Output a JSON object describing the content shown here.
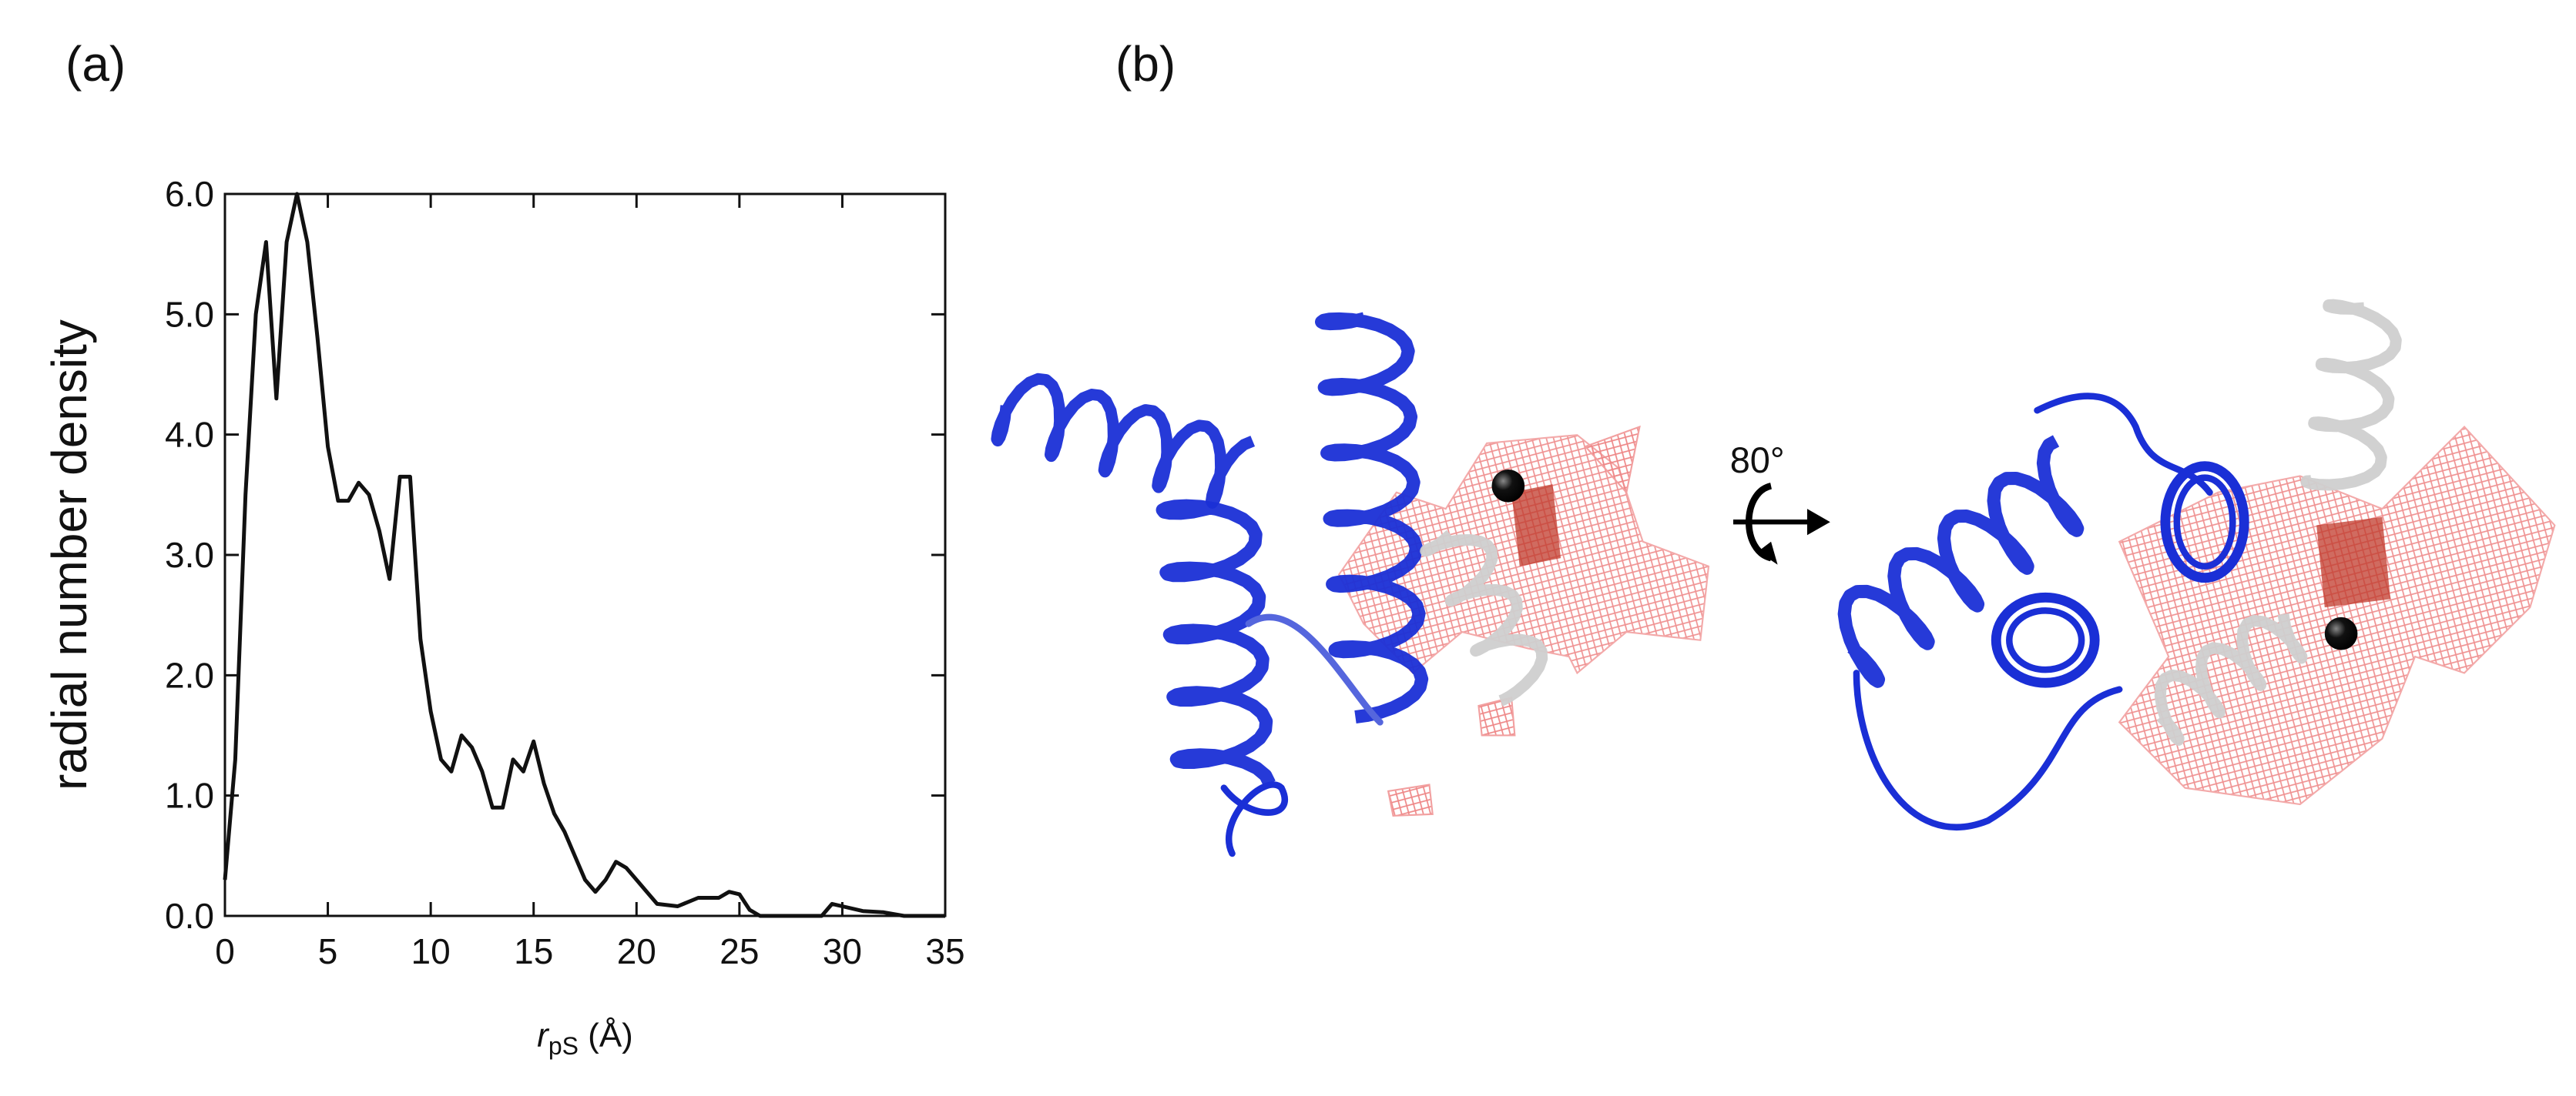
{
  "panel_labels": [
    "(a)",
    "(b)"
  ],
  "rotation_label": "80°",
  "chart_data": {
    "type": "line",
    "ylabel": "radial number density",
    "xlabel": {
      "symbol": "r",
      "subscript": "pS",
      "unit": "(Å)"
    },
    "x": [
      0,
      0.5,
      1,
      1.5,
      2,
      2.5,
      3,
      3.5,
      4,
      4.5,
      5,
      5.5,
      6,
      6.5,
      7,
      7.5,
      8,
      8.5,
      9,
      9.5,
      10,
      10.5,
      11,
      11.5,
      12,
      12.5,
      13,
      13.5,
      14,
      14.5,
      15,
      15.5,
      16,
      16.5,
      17,
      17.5,
      18,
      18.5,
      19,
      19.5,
      20,
      20.5,
      21,
      22,
      23,
      24,
      24.5,
      25,
      25.5,
      26,
      27,
      28,
      29,
      29.5,
      30,
      31,
      32,
      33,
      34,
      35
    ],
    "values": [
      0.3,
      1.3,
      3.5,
      5.0,
      5.6,
      4.3,
      5.6,
      6.0,
      5.6,
      4.8,
      3.9,
      3.45,
      3.45,
      3.6,
      3.5,
      3.2,
      2.8,
      3.65,
      3.65,
      2.3,
      1.7,
      1.3,
      1.2,
      1.5,
      1.4,
      1.2,
      0.9,
      0.9,
      1.3,
      1.2,
      1.45,
      1.1,
      0.85,
      0.7,
      0.5,
      0.3,
      0.2,
      0.3,
      0.45,
      0.4,
      0.3,
      0.2,
      0.1,
      0.08,
      0.15,
      0.15,
      0.2,
      0.18,
      0.05,
      0,
      0,
      0,
      0,
      0.1,
      0.08,
      0.04,
      0.03,
      0,
      0,
      0
    ],
    "color": "#111111",
    "xlim": [
      0,
      35
    ],
    "ylim": [
      0,
      6
    ],
    "xticks": [
      0,
      5,
      10,
      15,
      20,
      25,
      30,
      35
    ],
    "yticks": [
      {
        "value": 0,
        "label": "0.0"
      },
      {
        "value": 1,
        "label": "1.0"
      },
      {
        "value": 2,
        "label": "2.0"
      },
      {
        "value": 3,
        "label": "3.0"
      },
      {
        "value": 4,
        "label": "4.0"
      },
      {
        "value": 5,
        "label": "5.0"
      },
      {
        "value": 6,
        "label": "6.0"
      }
    ]
  }
}
